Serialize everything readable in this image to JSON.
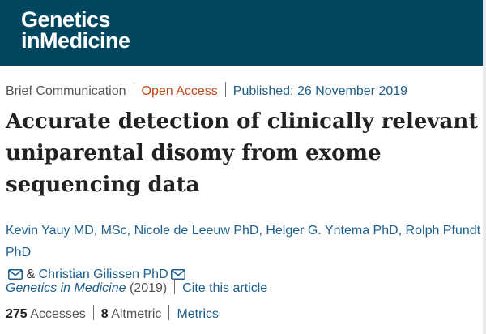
{
  "header": {
    "logo_line1": "Genetics",
    "logo_line2_prefix": "in",
    "logo_line2": "Medicine",
    "bg_color": "#00465e"
  },
  "meta": {
    "article_type": "Brief Communication",
    "access": "Open Access",
    "published": "Published: 26 November 2019"
  },
  "title": "Accurate detection of clinically relevant uniparental disomy from exome sequencing data",
  "authors": {
    "list": "Kevin Yauy MD, MSc, Nicole de Leeuw PhD, Helger G. Yntema PhD, Rolph Pfundt PhD",
    "amp": "&",
    "last": "Christian Gilissen PhD"
  },
  "journal": {
    "name": "Genetics in Medicine",
    "year": "(2019)",
    "cite": "Cite this article"
  },
  "metrics": {
    "accesses_count": "275",
    "accesses_label": "Accesses",
    "altmetric_count": "8",
    "altmetric_label": "Altmetric",
    "metrics_link": "Metrics"
  },
  "colors": {
    "link": "#1c5f8c",
    "open_access": "#c14a17"
  },
  "icons": [
    "envelope-icon"
  ]
}
